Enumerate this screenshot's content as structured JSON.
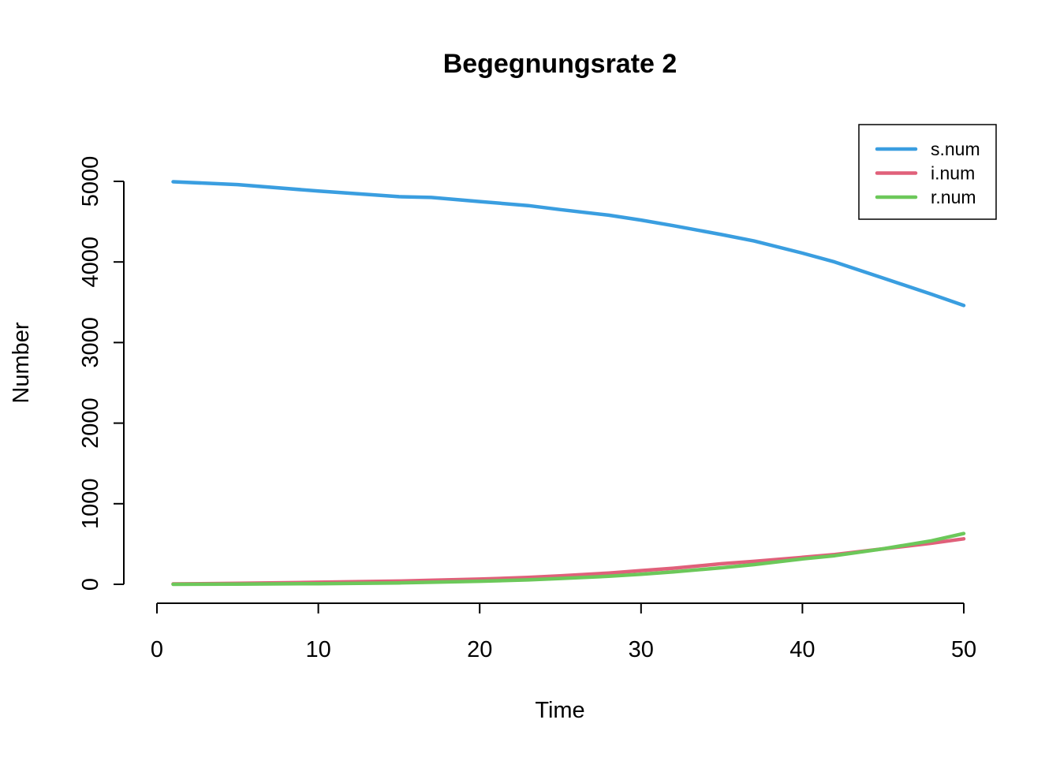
{
  "chart_data": {
    "type": "line",
    "title": "Begegnungsrate 2",
    "xlabel": "Time",
    "ylabel": "Number",
    "xlim": [
      1,
      50
    ],
    "ylim": [
      0,
      5000
    ],
    "x_ticks": [
      0,
      10,
      20,
      30,
      40,
      50
    ],
    "y_ticks": [
      0,
      1000,
      2000,
      3000,
      4000,
      5000
    ],
    "grid": false,
    "legend_position": "top-right",
    "x": [
      1,
      5,
      10,
      15,
      17,
      20,
      23,
      25,
      28,
      30,
      32,
      35,
      37,
      40,
      42,
      45,
      48,
      50
    ],
    "series": [
      {
        "name": "s.num",
        "color": "#3a9ee0",
        "values": [
          4995,
          4960,
          4880,
          4810,
          4800,
          4750,
          4700,
          4650,
          4580,
          4520,
          4450,
          4340,
          4260,
          4110,
          4000,
          3800,
          3600,
          3460
        ]
      },
      {
        "name": "i.num",
        "color": "#e0607a",
        "values": [
          5,
          12,
          25,
          40,
          50,
          65,
          85,
          105,
          140,
          170,
          200,
          255,
          285,
          335,
          370,
          440,
          510,
          565
        ]
      },
      {
        "name": "r.num",
        "color": "#6cc85a",
        "values": [
          0,
          3,
          8,
          18,
          25,
          38,
          55,
          72,
          100,
          125,
          155,
          205,
          245,
          315,
          355,
          440,
          540,
          630
        ]
      }
    ]
  }
}
